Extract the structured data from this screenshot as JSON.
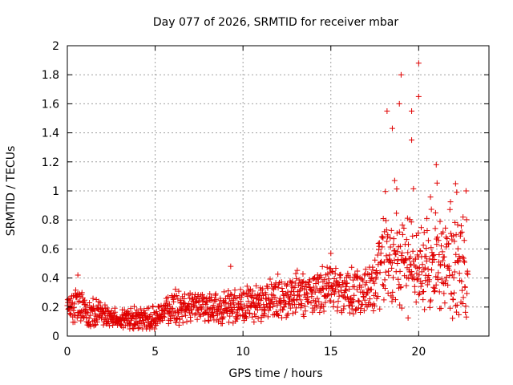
{
  "chart_data": {
    "type": "scatter",
    "title": "Day 077 of 2026, SRMTID for receiver mbar",
    "xlabel": "GPS time / hours",
    "ylabel": "SRMTID / TECUs",
    "xlim": [
      0,
      24
    ],
    "ylim": [
      0,
      2
    ],
    "x_ticks": [
      0,
      5,
      10,
      15,
      20
    ],
    "x_tick_labels": [
      "0",
      "5",
      "10",
      "15",
      "20"
    ],
    "y_ticks": [
      0,
      0.2,
      0.4,
      0.6,
      0.8,
      1,
      1.2,
      1.4,
      1.6,
      1.8,
      2
    ],
    "y_tick_labels": [
      "0",
      "0.2",
      "0.4",
      "0.6",
      "0.8",
      "1",
      "1.2",
      "1.4",
      "1.6",
      "1.8",
      "2"
    ],
    "grid": true,
    "marker": "plus",
    "marker_color": "#e00000",
    "series": [
      {
        "name": "SRMTID",
        "trend_x": [
          0,
          0.5,
          1,
          2,
          3,
          4,
          5,
          6,
          7,
          8,
          9,
          10,
          11,
          12,
          13,
          14,
          15,
          16,
          17,
          18,
          19,
          20,
          21,
          22,
          22.8
        ],
        "trend_y": [
          0.18,
          0.22,
          0.17,
          0.15,
          0.12,
          0.12,
          0.12,
          0.2,
          0.2,
          0.18,
          0.2,
          0.22,
          0.24,
          0.27,
          0.29,
          0.3,
          0.33,
          0.3,
          0.3,
          0.45,
          0.5,
          0.45,
          0.5,
          0.5,
          0.45
        ],
        "peaks": [
          {
            "x": 18.2,
            "y": 1.55
          },
          {
            "x": 18.5,
            "y": 1.43
          },
          {
            "x": 18.9,
            "y": 1.6
          },
          {
            "x": 19.0,
            "y": 1.8
          },
          {
            "x": 19.6,
            "y": 1.55
          },
          {
            "x": 19.6,
            "y": 1.35
          },
          {
            "x": 20.0,
            "y": 1.88
          },
          {
            "x": 20.0,
            "y": 1.65
          },
          {
            "x": 21.0,
            "y": 1.18
          },
          {
            "x": 22.1,
            "y": 1.05
          },
          {
            "x": 0.6,
            "y": 0.42
          },
          {
            "x": 9.3,
            "y": 0.48
          },
          {
            "x": 15.0,
            "y": 0.57
          }
        ]
      }
    ]
  }
}
